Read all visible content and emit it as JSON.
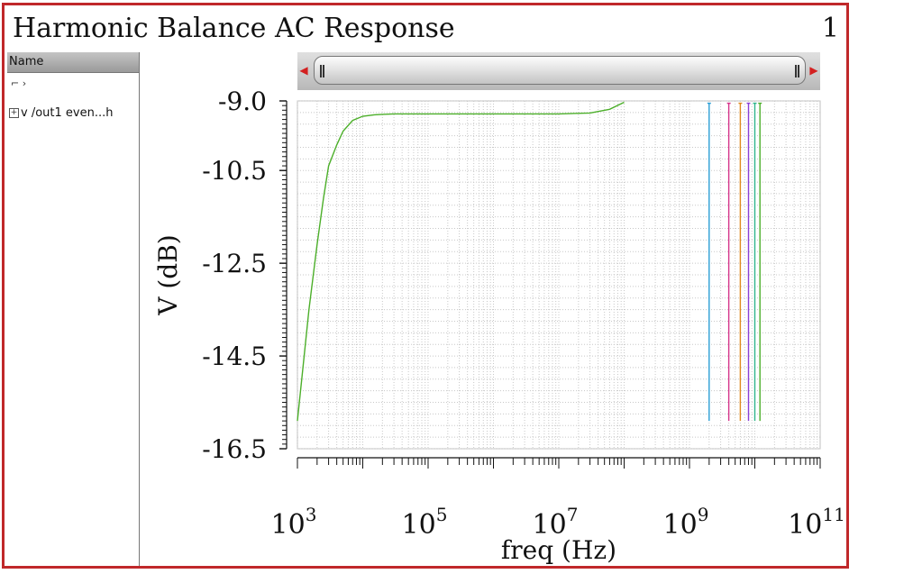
{
  "window": {
    "title": "Harmonic Balance AC Response",
    "subwindow_number": "1",
    "border_color": "#c0282a"
  },
  "sidebar": {
    "header": "Name",
    "root_label": "⌐   ›",
    "tree_items": [
      {
        "expander": "+",
        "label": "v /out1 even...h"
      }
    ]
  },
  "scrollbar": {
    "left_icon": "arrow-left-icon",
    "right_icon": "arrow-right-icon"
  },
  "chart_data": {
    "type": "line",
    "title": "",
    "xlabel": "freq (Hz)",
    "ylabel": "V (dB)",
    "x_scale": "log",
    "xlim": [
      1000,
      100000000000
    ],
    "ylim": [
      -16.5,
      -9.0
    ],
    "grid": true,
    "x_tick_labels": [
      {
        "base": "10",
        "exp": "3",
        "value": 1000
      },
      {
        "base": "10",
        "exp": "5",
        "value": 100000
      },
      {
        "base": "10",
        "exp": "7",
        "value": 10000000
      },
      {
        "base": "10",
        "exp": "9",
        "value": 1000000000
      },
      {
        "base": "10",
        "exp": "11",
        "value": 100000000000
      }
    ],
    "y_tick_labels": [
      {
        "text": "-9.0",
        "value": -9.0
      },
      {
        "text": "-10.5",
        "value": -10.5
      },
      {
        "text": "-12.5",
        "value": -12.5
      },
      {
        "text": "-14.5",
        "value": -14.5
      },
      {
        "text": "-16.5",
        "value": -16.5
      }
    ],
    "series": [
      {
        "color": "#4caf2a",
        "x": [
          1000,
          1500,
          2000,
          2500,
          3000,
          4000,
          5000,
          7000,
          10000,
          15000,
          20000,
          30000,
          50000,
          100000,
          1000000,
          10000000,
          30000000,
          60000000,
          100000000
        ],
        "y": [
          -15.9,
          -13.5,
          -12.1,
          -11.1,
          -10.4,
          -9.95,
          -9.65,
          -9.42,
          -9.33,
          -9.3,
          -9.29,
          -9.28,
          -9.28,
          -9.28,
          -9.28,
          -9.28,
          -9.26,
          -9.18,
          -9.03
        ]
      },
      {
        "color": "#2b9fd6",
        "x": [
          2000000000,
          2000000000
        ],
        "y": [
          -15.9,
          -9.05
        ]
      },
      {
        "color": "#d6338a",
        "x": [
          4000000000,
          4000000000
        ],
        "y": [
          -15.9,
          -9.05
        ]
      },
      {
        "color": "#e08a1e",
        "x": [
          6000000000,
          6000000000
        ],
        "y": [
          -15.9,
          -9.05
        ]
      },
      {
        "color": "#8a3fd6",
        "x": [
          8000000000,
          8000000000
        ],
        "y": [
          -15.9,
          -9.05
        ]
      },
      {
        "color": "#2fb58c",
        "x": [
          10000000000,
          10000000000
        ],
        "y": [
          -15.9,
          -9.05
        ]
      },
      {
        "color": "#4caf2a",
        "x": [
          12000000000,
          12000000000
        ],
        "y": [
          -15.9,
          -9.05
        ]
      }
    ]
  }
}
